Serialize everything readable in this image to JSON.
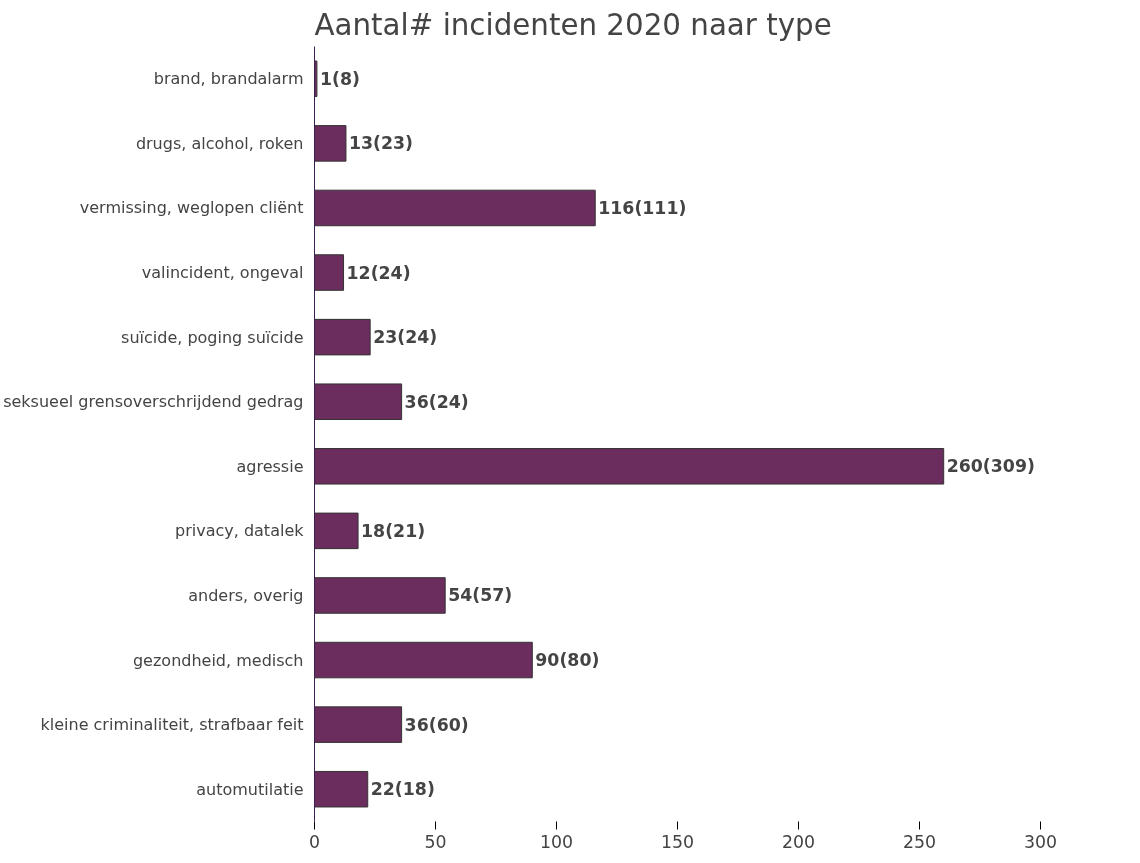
{
  "chart_data": {
    "type": "bar",
    "orientation": "horizontal",
    "title": "Aantal# incidenten 2020 naar type",
    "categories": [
      "brand, brandalarm",
      "drugs, alcohol, roken",
      "vermissing, weglopen cliënt",
      "valincident, ongeval",
      "suïcide, poging suïcide",
      "seksueel grensoverschrijdend gedrag",
      "agressie",
      "privacy, datalek",
      "anders, overig",
      "gezondheid, medisch",
      "kleine criminaliteit, strafbaar feit",
      "automutilatie"
    ],
    "values": [
      1,
      13,
      116,
      12,
      23,
      36,
      260,
      18,
      54,
      90,
      36,
      22
    ],
    "value_labels": [
      "1(8)",
      "13(23)",
      "116(111)",
      "12(24)",
      "23(24)",
      "36(24)",
      "260(309)",
      "18(21)",
      "54(57)",
      "90(80)",
      "36(60)",
      "22(18)"
    ],
    "color": "#6b2d5e",
    "xlim": [
      0,
      300
    ],
    "xticks": [
      0,
      50,
      100,
      150,
      200,
      250,
      300
    ],
    "grid": false
  }
}
